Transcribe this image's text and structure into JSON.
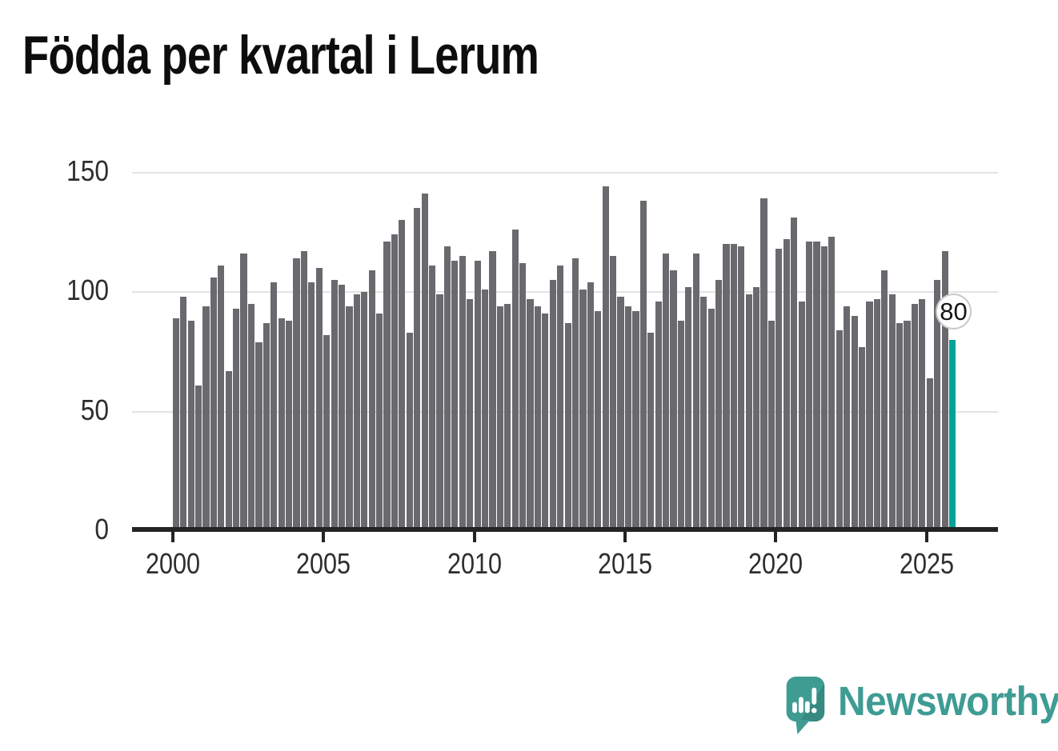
{
  "title": "Födda per kvartal i Lerum",
  "y_axis": {
    "tick_labels": [
      "0",
      "50",
      "100",
      "150"
    ],
    "tick_values": [
      0,
      50,
      100,
      150
    ]
  },
  "x_axis": {
    "tick_labels": [
      "2000",
      "2005",
      "2010",
      "2015",
      "2020",
      "2025"
    ]
  },
  "annotation": {
    "latest_value_label": "80"
  },
  "branding": {
    "wordmark": "Newsworthy",
    "icon": "speech-bubble-bar-chart-icon"
  },
  "colors": {
    "bar": "#69696e",
    "accent": "#00a39b",
    "grid": "#e3e3e3",
    "axis": "#242424",
    "title": "#0d0d0d",
    "tick_label": "#2e2e2e",
    "logo": "#3e9c93",
    "annotation_border": "#c9c9c9",
    "background": "#ffffff"
  },
  "chart_data": {
    "type": "bar",
    "title": "Födda per kvartal i Lerum",
    "frequency": "quarterly",
    "start": "2000-Q1",
    "end": "2025-Q4",
    "categories_note": "104 consecutive quarters from 2000 Q1 to 2025 Q4",
    "ylim": [
      0,
      150
    ],
    "grid": true,
    "legend": false,
    "highlight_last": {
      "value": 80,
      "label": "80",
      "color": "#00a39b"
    },
    "values": [
      89,
      98,
      88,
      61,
      94,
      106,
      111,
      67,
      93,
      116,
      95,
      79,
      87,
      104,
      89,
      88,
      114,
      117,
      104,
      110,
      82,
      105,
      103,
      94,
      99,
      100,
      109,
      91,
      121,
      124,
      130,
      83,
      135,
      141,
      111,
      99,
      119,
      113,
      115,
      97,
      113,
      101,
      117,
      94,
      95,
      126,
      112,
      97,
      94,
      91,
      105,
      111,
      87,
      114,
      101,
      104,
      92,
      144,
      115,
      98,
      94,
      92,
      138,
      83,
      96,
      116,
      109,
      88,
      102,
      116,
      98,
      93,
      105,
      120,
      120,
      119,
      99,
      102,
      139,
      88,
      118,
      122,
      131,
      96,
      121,
      121,
      119,
      123,
      84,
      94,
      90,
      77,
      96,
      97,
      109,
      99,
      87,
      88,
      95,
      97,
      64,
      105,
      117,
      80
    ]
  }
}
